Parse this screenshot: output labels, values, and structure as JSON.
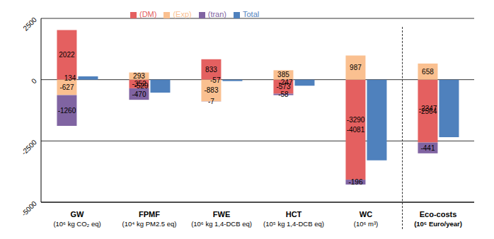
{
  "chart_data": {
    "type": "bar",
    "categories": [
      "GW\n(10⁶ kg CO₂ eq)",
      "FPMF\n(10⁴ kg PM2.5 eq)",
      "FWE\n(10⁶ kg 1,4-DCB eq)",
      "HCT\n(10⁵ kg 1,4-DCB eq)",
      "WC\n(10⁶ m³)",
      "Eco-costs\n(10⁶ Euro/year)"
    ],
    "series": [
      {
        "name": "Total",
        "color": "#4f81bd",
        "values": [
          134,
          -529,
          -57,
          -247,
          -3290,
          -2347
        ]
      },
      {
        "name": "(DM)",
        "color": "#e46060",
        "values": [
          2022,
          -352,
          833,
          -573,
          -4081,
          -2564
        ]
      },
      {
        "name": "(Exp)",
        "color": "#fac090",
        "values": [
          -627,
          293,
          -883,
          385,
          987,
          658
        ]
      },
      {
        "name": "(tran)",
        "color": "#8064a2",
        "values": [
          -1260,
          -470,
          -7,
          -58,
          -196,
          -441
        ]
      }
    ],
    "ylim": [
      -5000,
      2500
    ],
    "yticks": [
      -5000,
      -2500,
      0,
      2500
    ],
    "grid": true,
    "stacked": true,
    "legend": "top",
    "data_labels": true
  }
}
